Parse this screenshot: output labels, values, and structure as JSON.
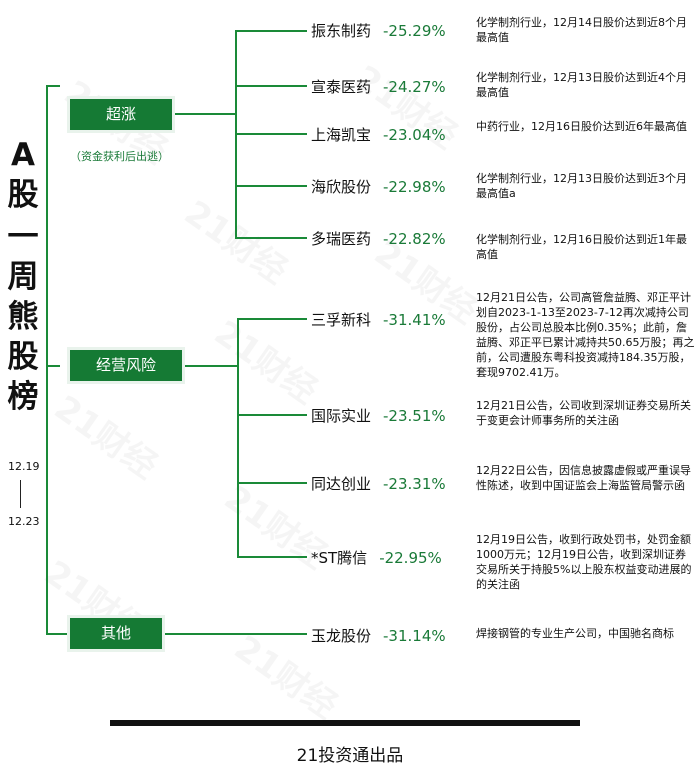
{
  "title": [
    "A",
    "股",
    "一",
    "周",
    "熊",
    "股",
    "榜"
  ],
  "date_start": "12.19",
  "date_end": "12.23",
  "footer": "21投资通出品",
  "watermark": "21财经",
  "categories": [
    {
      "label": "超涨",
      "note": "（资金获利后出逃）"
    },
    {
      "label": "经营风险"
    },
    {
      "label": "其他"
    }
  ],
  "stocks": [
    {
      "name": "振东制药",
      "pct": "-25.29%",
      "note": "化学制剂行业，12月14日股价达到近8个月最高值"
    },
    {
      "name": "宣泰医药",
      "pct": "-24.27%",
      "note": "化学制剂行业，12月13日股价达到近4个月最高值"
    },
    {
      "name": "上海凯宝",
      "pct": "-23.04%",
      "note": "中药行业，12月16日股价达到近6年最高值"
    },
    {
      "name": "海欣股份",
      "pct": "-22.98%",
      "note": "化学制剂行业，12月13日股价达到近3个月最高值a"
    },
    {
      "name": "多瑞医药",
      "pct": "-22.82%",
      "note": "化学制剂行业，12月16日股价达到近1年最高值"
    },
    {
      "name": "三孚新科",
      "pct": "-31.41%",
      "note": "12月21日公告，公司高管詹益腾、邓正平计划自2023-1-13至2023-7-12再次减持公司股份，占公司总股本比例0.35%；此前，詹益腾、邓正平已累计减持共50.65万股；再之前，公司遭股东粤科投资减持184.35万股，套现9702.41万。"
    },
    {
      "name": "国际实业",
      "pct": "-23.51%",
      "note": "12月21日公告，公司收到深圳证券交易所关于变更会计师事务所的关注函"
    },
    {
      "name": "同达创业",
      "pct": "-23.31%",
      "note": "12月22日公告，因信息披露虚假或严重误导性陈述，收到中国证监会上海监管局警示函"
    },
    {
      "name": "*ST腾信",
      "pct": "-22.95%",
      "note": "12月19日公告，收到行政处罚书，处罚金额1000万元；12月19日公告，收到深圳证券交易所关于持股5%以上股东权益变动进展的的关注函"
    },
    {
      "name": "玉龙股份",
      "pct": "-31.14%",
      "note": "焊接钢管的专业生产公司，中国驰名商标"
    }
  ]
}
